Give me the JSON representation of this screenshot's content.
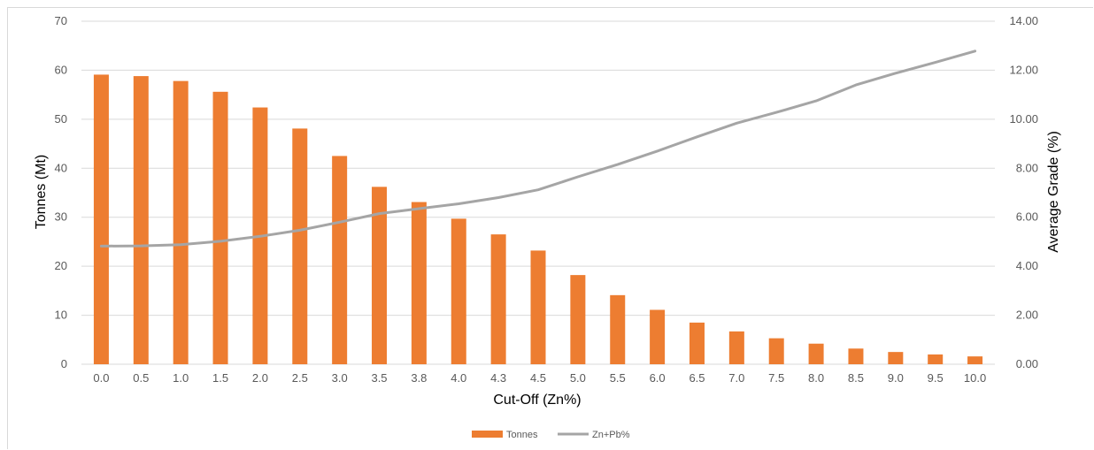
{
  "chart_data": {
    "type": "bar",
    "categories": [
      "0.0",
      "0.5",
      "1.0",
      "1.5",
      "2.0",
      "2.5",
      "3.0",
      "3.5",
      "3.8",
      "4.0",
      "4.3",
      "4.5",
      "5.0",
      "5.5",
      "6.0",
      "6.5",
      "7.0",
      "7.5",
      "8.0",
      "8.5",
      "9.0",
      "9.5",
      "10.0"
    ],
    "series": [
      {
        "name": "Tonnes",
        "type": "bar",
        "axis": "left",
        "color": "#ED7D31",
        "values": [
          59.1,
          58.8,
          57.8,
          55.6,
          52.4,
          48.1,
          42.5,
          36.2,
          33.1,
          29.7,
          26.5,
          23.2,
          18.2,
          14.1,
          11.1,
          8.5,
          6.7,
          5.3,
          4.2,
          3.2,
          2.5,
          2.0,
          1.6
        ]
      },
      {
        "name": "Zn+Pb%",
        "type": "line",
        "axis": "right",
        "color": "#A5A5A5",
        "values": [
          4.82,
          4.83,
          4.88,
          5.02,
          5.22,
          5.47,
          5.8,
          6.15,
          6.35,
          6.55,
          6.8,
          7.12,
          7.65,
          8.15,
          8.7,
          9.28,
          9.84,
          10.28,
          10.75,
          11.4,
          11.88,
          12.32,
          12.78
        ]
      }
    ],
    "xlabel": "Cut-Off (Zn%)",
    "ylabel": "Tonnes (Mt)",
    "y2label": "Average Grade (%)",
    "ylim": [
      0,
      70
    ],
    "yticks": [
      "0",
      "10",
      "20",
      "30",
      "40",
      "50",
      "60",
      "70"
    ],
    "y2lim": [
      0,
      14
    ],
    "y2ticks": [
      "0.00",
      "2.00",
      "4.00",
      "6.00",
      "8.00",
      "10.00",
      "12.00",
      "14.00"
    ],
    "grid": true,
    "legend_position": "bottom"
  }
}
